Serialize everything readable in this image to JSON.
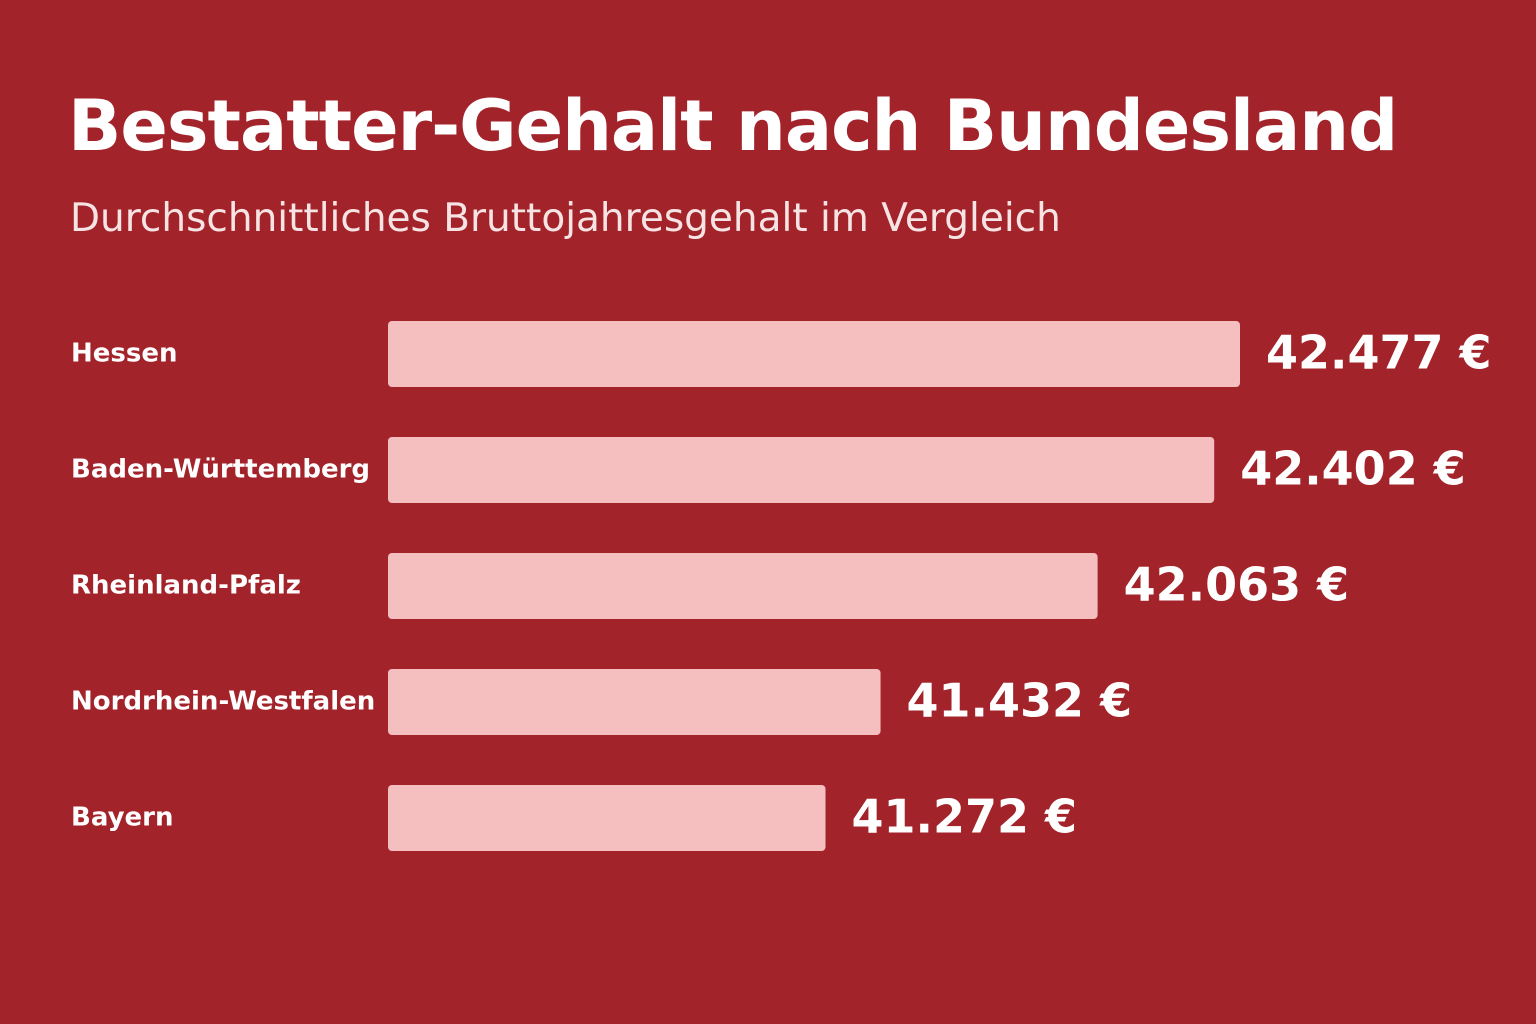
{
  "colors": {
    "background": "#a3232a",
    "bar": "#f5bfc0",
    "text": "#ffffff"
  },
  "title": "Bestatter-Gehalt nach Bundesland",
  "subtitle": "Durchschnittliches Bruttojahresgehalt im Vergleich",
  "chart_data": {
    "type": "bar",
    "orientation": "horizontal",
    "title": "Bestatter-Gehalt nach Bundesland",
    "subtitle": "Durchschnittliches Bruttojahresgehalt im Vergleich",
    "categories": [
      "Hessen",
      "Baden-Württemberg",
      "Rheinland-Pfalz",
      "Nordrhein-Westfalen",
      "Bayern"
    ],
    "values": [
      42477,
      42402,
      42063,
      41432,
      41272
    ],
    "value_labels": [
      "42.477 €",
      "42.402 €",
      "42.063 €",
      "41.432 €",
      "41.272 €"
    ],
    "xlabel": "",
    "ylabel": "",
    "grid": false,
    "legend": "none"
  }
}
